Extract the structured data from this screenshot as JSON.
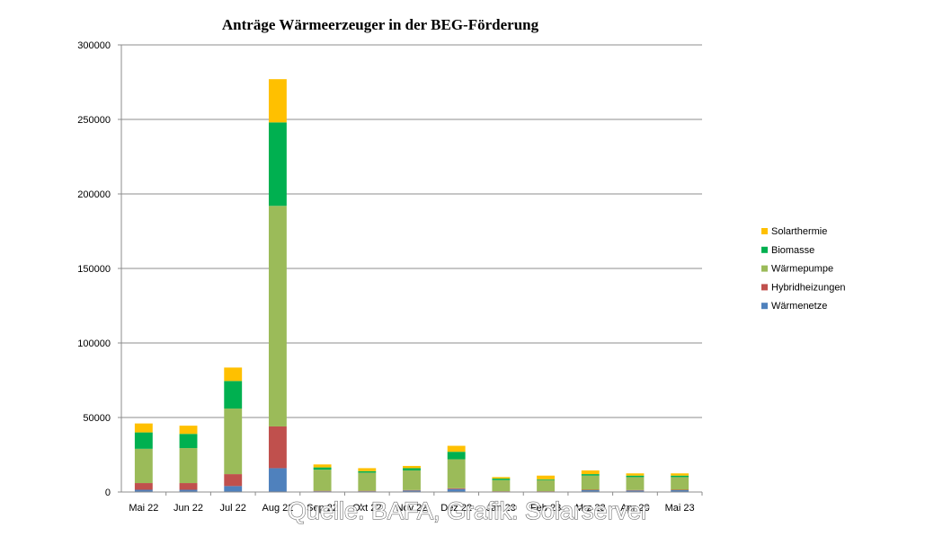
{
  "chart_data": {
    "type": "bar",
    "stacked": true,
    "title": "Anträge Wärmeerzeuger in der  BEG-Förderung",
    "xlabel": "",
    "ylabel": "",
    "ylim": [
      0,
      300000
    ],
    "yticks": [
      "0",
      "50000",
      "100000",
      "150000",
      "200000",
      "250000",
      "300000"
    ],
    "ytick_values": [
      0,
      50000,
      100000,
      150000,
      200000,
      250000,
      300000
    ],
    "grid": true,
    "legend_position": "right",
    "categories": [
      "Mai 22",
      "Jun 22",
      "Jul 22",
      "Aug 22",
      "Sep 22",
      "Okt 22",
      "Nov 22",
      "Dez 22",
      "Jan 23",
      "Feb 23",
      "Mrz 23",
      "Apr 23",
      "Mai 23"
    ],
    "series": [
      {
        "name": "Wärmenetze",
        "color": "#4f81bd",
        "values": [
          1500,
          1500,
          4000,
          16000,
          500,
          500,
          1000,
          2000,
          300,
          300,
          1200,
          1000,
          1200
        ]
      },
      {
        "name": "Hybridheizungen",
        "color": "#c0504d",
        "values": [
          4500,
          4500,
          8000,
          28000,
          300,
          300,
          300,
          500,
          200,
          200,
          300,
          300,
          300
        ]
      },
      {
        "name": "Wärmepumpe",
        "color": "#9bbb59",
        "values": [
          23000,
          23500,
          44000,
          148000,
          14200,
          12200,
          13200,
          19500,
          7500,
          7500,
          9500,
          8700,
          8500
        ]
      },
      {
        "name": "Biomasse",
        "color": "#00b050",
        "values": [
          11000,
          9500,
          18500,
          56000,
          1500,
          1000,
          1500,
          5000,
          1000,
          500,
          1000,
          1000,
          1000
        ]
      },
      {
        "name": "Solarthermie",
        "color": "#ffc000",
        "values": [
          6000,
          5500,
          9000,
          29000,
          2000,
          2000,
          1500,
          4000,
          1000,
          2500,
          2500,
          1500,
          1500
        ]
      }
    ]
  },
  "watermark": "Quelle: BAFA, Grafik: Solarserver"
}
